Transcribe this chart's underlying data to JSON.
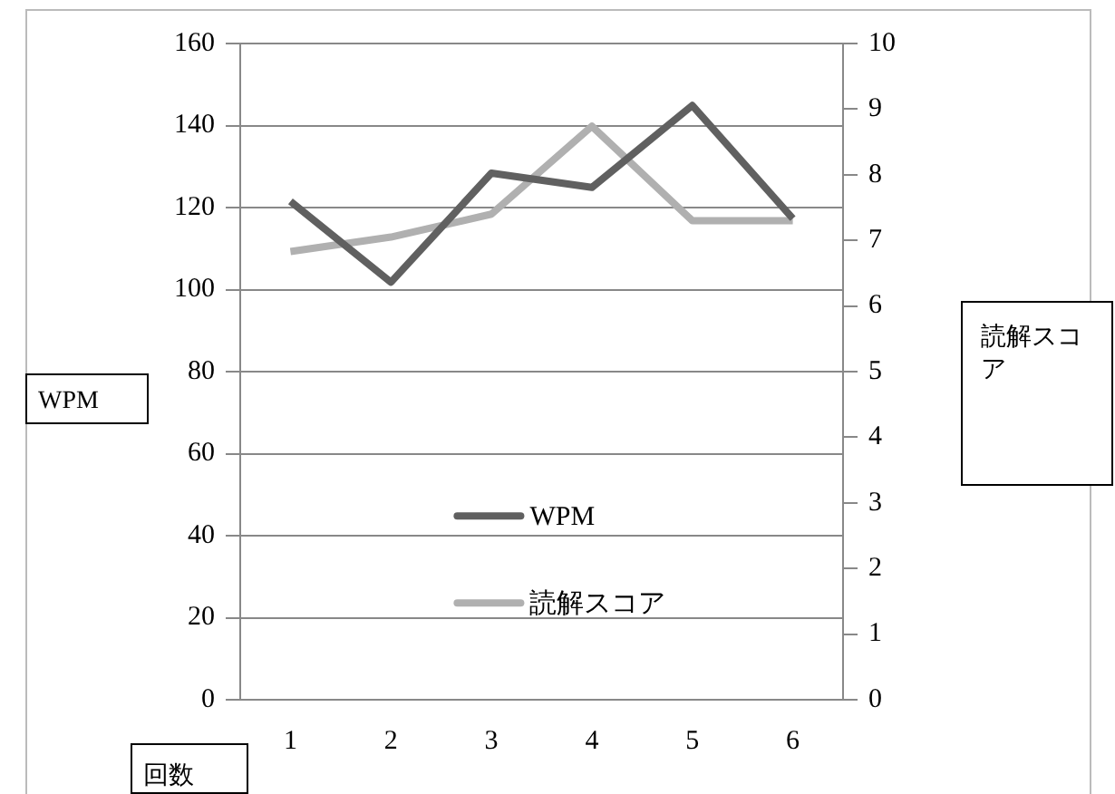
{
  "chart_data": {
    "type": "line",
    "categories": [
      "1",
      "2",
      "3",
      "4",
      "5",
      "6"
    ],
    "series": [
      {
        "name": "WPM",
        "color": "#606060",
        "values": [
          121.5,
          101.8,
          128.4,
          124.9,
          144.9,
          117.3
        ]
      },
      {
        "name": "読解スコア",
        "color": "#b0b0b0",
        "values": [
          6.83,
          7.05,
          7.4,
          8.74,
          7.3,
          7.3
        ],
        "axis": "y2"
      }
    ],
    "xlabel": "回数",
    "ylabel": "WPM",
    "y2label": "読解スコア",
    "ylim": [
      0,
      160
    ],
    "yticks": [
      0,
      20,
      40,
      60,
      80,
      100,
      120,
      140,
      160
    ],
    "y2lim": [
      0,
      10
    ],
    "y2ticks": [
      0,
      1,
      2,
      3,
      4,
      5,
      6,
      7,
      8,
      9,
      10
    ],
    "grid": "y",
    "legend": "center",
    "marker": "none",
    "line_style": "solid"
  }
}
